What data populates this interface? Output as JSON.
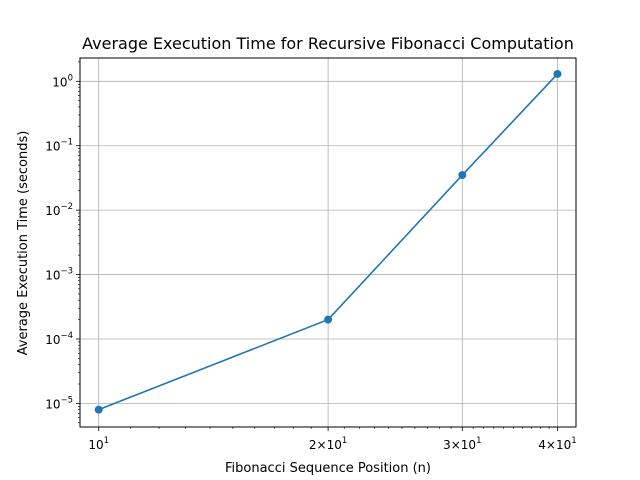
{
  "chart_data": {
    "type": "line",
    "title": "Average Execution Time for Recursive Fibonacci Computation",
    "xlabel": "Fibonacci Sequence Position (n)",
    "ylabel": "Average Execution Time (seconds)",
    "xscale": "log",
    "yscale": "log",
    "xlim": [
      9.45,
      42.3
    ],
    "ylim": [
      4.3e-06,
      2.3
    ],
    "grid": true,
    "marker": "circle",
    "series": [
      {
        "color": "#1f77b4",
        "x": [
          10,
          20,
          30,
          40
        ],
        "y": [
          8e-06,
          0.0002,
          0.035,
          1.3
        ]
      }
    ],
    "x_ticks": [
      {
        "value": 10,
        "base": "10",
        "exp": "1"
      },
      {
        "value": 20,
        "base": "2×10",
        "exp": "1"
      },
      {
        "value": 30,
        "base": "3×10",
        "exp": "1"
      },
      {
        "value": 40,
        "base": "4×10",
        "exp": "1"
      }
    ],
    "y_ticks": [
      {
        "value": 1e-05,
        "base": "10",
        "exp": "−5"
      },
      {
        "value": 0.0001,
        "base": "10",
        "exp": "−4"
      },
      {
        "value": 0.001,
        "base": "10",
        "exp": "−3"
      },
      {
        "value": 0.01,
        "base": "10",
        "exp": "−2"
      },
      {
        "value": 0.1,
        "base": "10",
        "exp": "−1"
      },
      {
        "value": 1,
        "base": "10",
        "exp": "0"
      }
    ]
  }
}
